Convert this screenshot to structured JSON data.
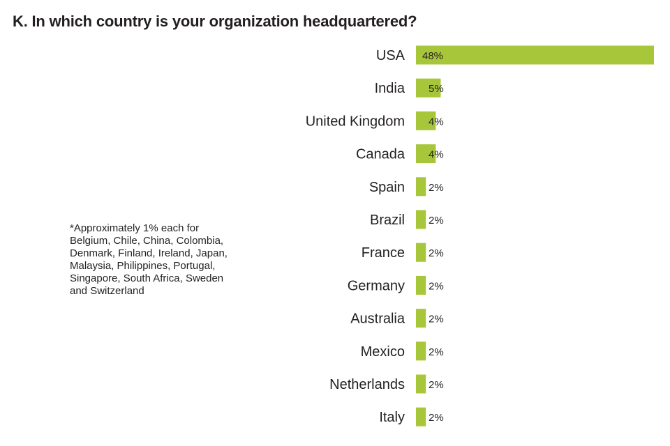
{
  "title": "K. In which country is your organization headquartered?",
  "footnote": [
    "*Approximately 1% each for",
    "Belgium, Chile, China, Colombia,",
    "Denmark, Finland, Ireland, Japan,",
    "Malaysia, Philippines, Portugal,",
    "Singapore, South Africa, Sweden",
    "and Switzerland"
  ],
  "colors": {
    "bar": "#a8c63a",
    "text": "#231f20"
  },
  "chart_data": {
    "type": "bar",
    "orientation": "horizontal",
    "title": "K. In which country is your organization headquartered?",
    "categories": [
      "USA",
      "India",
      "United Kingdom",
      "Canada",
      "Spain",
      "Brazil",
      "France",
      "Germany",
      "Australia",
      "Mexico",
      "Netherlands",
      "Italy"
    ],
    "values": [
      48,
      5,
      4,
      4,
      2,
      2,
      2,
      2,
      2,
      2,
      2,
      2
    ],
    "value_labels": [
      "48%",
      "5%",
      "4%",
      "4%",
      "2%",
      "2%",
      "2%",
      "2%",
      "2%",
      "2%",
      "2%",
      "2%"
    ],
    "unit": "%",
    "xlim": [
      0,
      48
    ],
    "grid": false,
    "legend": "none"
  }
}
